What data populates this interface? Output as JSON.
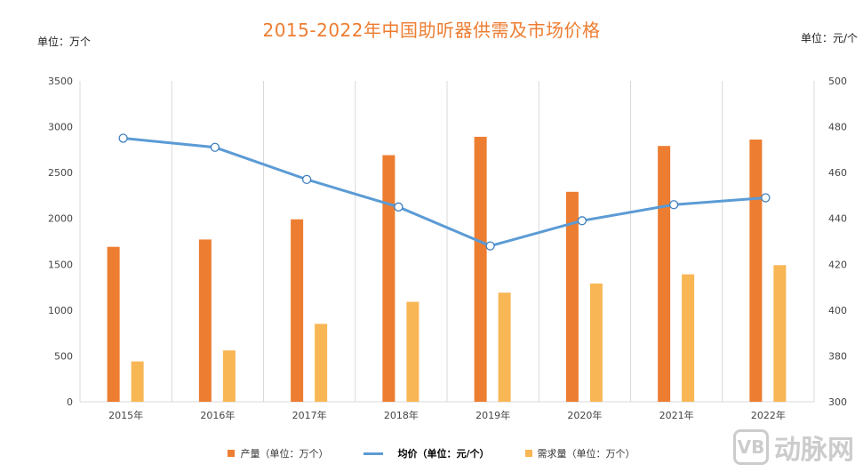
{
  "chart_data": {
    "type": "bar+line",
    "title": "2015-2022年中国助听器供需及市场价格",
    "ylabel": "单位：万个",
    "ylabel_right": "单位：元/个",
    "categories": [
      "2015年",
      "2016年",
      "2017年",
      "2018年",
      "2019年",
      "2020年",
      "2021年",
      "2022年"
    ],
    "ylim": [
      0,
      3500
    ],
    "yticks": [
      0,
      500,
      1000,
      1500,
      2000,
      2500,
      3000,
      3500
    ],
    "yticks_right": [
      300,
      380,
      400,
      420,
      440,
      460,
      480,
      500
    ],
    "grid": "vertical",
    "legend_position": "bottom",
    "series": [
      {
        "name": "产量（单位：万个）",
        "type": "bar",
        "axis": "left",
        "color": "#ed7d31",
        "values": [
          1690,
          1770,
          1990,
          2690,
          2890,
          2290,
          2790,
          2860
        ]
      },
      {
        "name": "均价（单位：元/个）",
        "type": "line",
        "axis": "right",
        "color": "#5b9bd5",
        "values": [
          475,
          471,
          457,
          445,
          428,
          439,
          446,
          449
        ]
      },
      {
        "name": "需求量（单位：万个）",
        "type": "bar",
        "axis": "left",
        "color": "#f8b655",
        "values": [
          440,
          560,
          850,
          1090,
          1190,
          1290,
          1390,
          1490
        ]
      }
    ]
  },
  "watermark": {
    "logo": "VB",
    "text": "动脉网"
  }
}
